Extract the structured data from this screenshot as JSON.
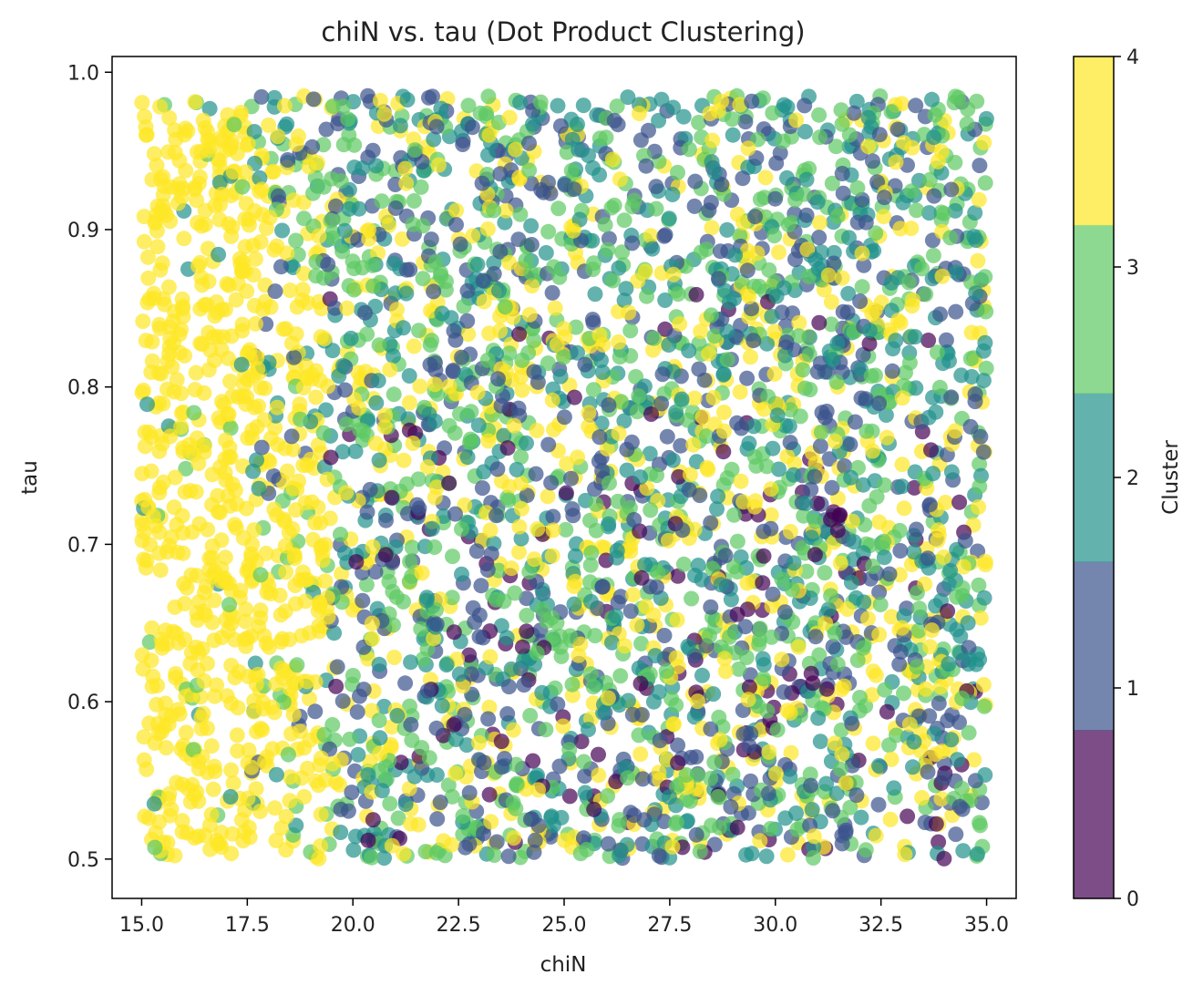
{
  "chart_data": {
    "type": "scatter",
    "title": "chiN vs. tau (Dot Product Clustering)",
    "xlabel": "chiN",
    "ylabel": "tau",
    "xlim": [
      14.3,
      35.7
    ],
    "ylim": [
      0.475,
      1.01
    ],
    "xticks": [
      15.0,
      17.5,
      20.0,
      22.5,
      25.0,
      27.5,
      30.0,
      32.5,
      35.0
    ],
    "xtick_labels": [
      "15.0",
      "17.5",
      "20.0",
      "22.5",
      "25.0",
      "27.5",
      "30.0",
      "32.5",
      "35.0"
    ],
    "yticks": [
      0.5,
      0.6,
      0.7,
      0.8,
      0.9,
      1.0
    ],
    "ytick_labels": [
      "0.5",
      "0.6",
      "0.7",
      "0.8",
      "0.9",
      "1.0"
    ],
    "grid": false,
    "legend": "none",
    "marker_alpha": 0.7,
    "x_range": [
      15.0,
      35.0
    ],
    "y_range": [
      0.5,
      0.985
    ],
    "approx_point_count": 4000,
    "cluster_trends": [
      {
        "cluster": 0,
        "description": "concentrated in chiN 19-35, tau 0.5-0.8"
      },
      {
        "cluster": 1,
        "description": "spread across chiN 18-35, tau 0.5-1.0"
      },
      {
        "cluster": 2,
        "description": "spread across chiN 17-35, tau 0.5-1.0"
      },
      {
        "cluster": 3,
        "description": "spread across chiN 15-35, mostly tau > 0.8 at low chiN"
      },
      {
        "cluster": 4,
        "description": "dominant at chiN 15-19 across all tau, scattered elsewhere"
      }
    ],
    "colorbar": {
      "label": "Cluster",
      "ticks": [
        0,
        1,
        2,
        3,
        4
      ],
      "tick_labels": [
        "0",
        "1",
        "2",
        "3",
        "4"
      ],
      "range": [
        0,
        4
      ],
      "colors": [
        "#440154",
        "#3b528b",
        "#21918c",
        "#5ec962",
        "#fde725"
      ]
    }
  }
}
